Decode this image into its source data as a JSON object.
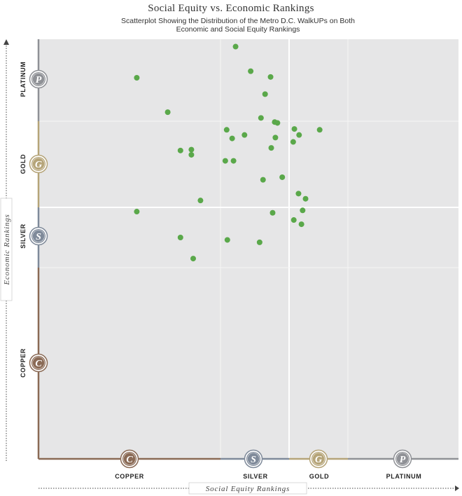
{
  "title": "Social Equity vs. Economic Rankings",
  "subtitle": "Scatterplot Showing the Distribution of the Metro D.C. WalkUPs on Both Economic and Social Equity Rankings",
  "chart_data": {
    "type": "scatter",
    "title": "Social Equity vs. Economic Rankings",
    "subtitle": "Scatterplot Showing the Distribution of the Metro D.C. WalkUPs on Both Economic and Social Equity Rankings",
    "xlabel": "Social Equity Rankings",
    "ylabel": "Economic Rankings",
    "xlim": [
      0,
      4
    ],
    "ylim": [
      0,
      4
    ],
    "grid": true,
    "x_tiers": [
      {
        "label": "COPPER",
        "medal": "C",
        "range": [
          0,
          1
        ],
        "color": "#8a6a55"
      },
      {
        "label": "SILVER",
        "medal": "S",
        "range": [
          1,
          2
        ],
        "color": "#7f8a9a"
      },
      {
        "label": "GOLD",
        "medal": "G",
        "range": [
          2,
          3
        ],
        "color": "#b5a478"
      },
      {
        "label": "PLATINUM",
        "medal": "P",
        "range": [
          3,
          4
        ],
        "color": "#8f9196"
      }
    ],
    "y_tiers": [
      {
        "label": "COPPER",
        "medal": "C",
        "range": [
          0,
          1
        ],
        "color": "#8a6a55"
      },
      {
        "label": "SILVER",
        "medal": "S",
        "range": [
          1,
          2
        ],
        "color": "#7f8a9a"
      },
      {
        "label": "GOLD",
        "medal": "G",
        "range": [
          2,
          3
        ],
        "color": "#b5a478"
      },
      {
        "label": "PLATINUM",
        "medal": "P",
        "range": [
          3,
          4
        ],
        "color": "#8f9196"
      }
    ],
    "point_color": "#5aa84a",
    "points": [
      {
        "x": 1.22,
        "y": 3.91
      },
      {
        "x": 1.44,
        "y": 3.61
      },
      {
        "x": 1.73,
        "y": 3.54
      },
      {
        "x": 1.65,
        "y": 3.33
      },
      {
        "x": 0.54,
        "y": 3.53
      },
      {
        "x": 0.71,
        "y": 3.11
      },
      {
        "x": 1.59,
        "y": 3.04
      },
      {
        "x": 1.79,
        "y": 2.99
      },
      {
        "x": 1.83,
        "y": 2.98
      },
      {
        "x": 2.09,
        "y": 2.91
      },
      {
        "x": 2.52,
        "y": 2.9
      },
      {
        "x": 1.09,
        "y": 2.9
      },
      {
        "x": 1.35,
        "y": 2.84
      },
      {
        "x": 2.17,
        "y": 2.84
      },
      {
        "x": 1.17,
        "y": 2.8
      },
      {
        "x": 1.8,
        "y": 2.81
      },
      {
        "x": 2.07,
        "y": 2.76
      },
      {
        "x": 1.74,
        "y": 2.69
      },
      {
        "x": 0.78,
        "y": 2.66
      },
      {
        "x": 0.84,
        "y": 2.67
      },
      {
        "x": 0.84,
        "y": 2.61
      },
      {
        "x": 1.07,
        "y": 2.54
      },
      {
        "x": 1.19,
        "y": 2.54
      },
      {
        "x": 1.9,
        "y": 2.35
      },
      {
        "x": 1.62,
        "y": 2.32
      },
      {
        "x": 2.16,
        "y": 2.16
      },
      {
        "x": 0.89,
        "y": 2.08
      },
      {
        "x": 0.54,
        "y": 1.93
      },
      {
        "x": 1.76,
        "y": 1.91
      },
      {
        "x": 2.08,
        "y": 1.79
      },
      {
        "x": 2.21,
        "y": 1.72
      },
      {
        "x": 2.23,
        "y": 1.95
      },
      {
        "x": 2.28,
        "y": 2.1
      },
      {
        "x": 0.78,
        "y": 1.5
      },
      {
        "x": 1.1,
        "y": 1.46
      },
      {
        "x": 1.57,
        "y": 1.42
      },
      {
        "x": 0.85,
        "y": 1.15
      }
    ]
  }
}
